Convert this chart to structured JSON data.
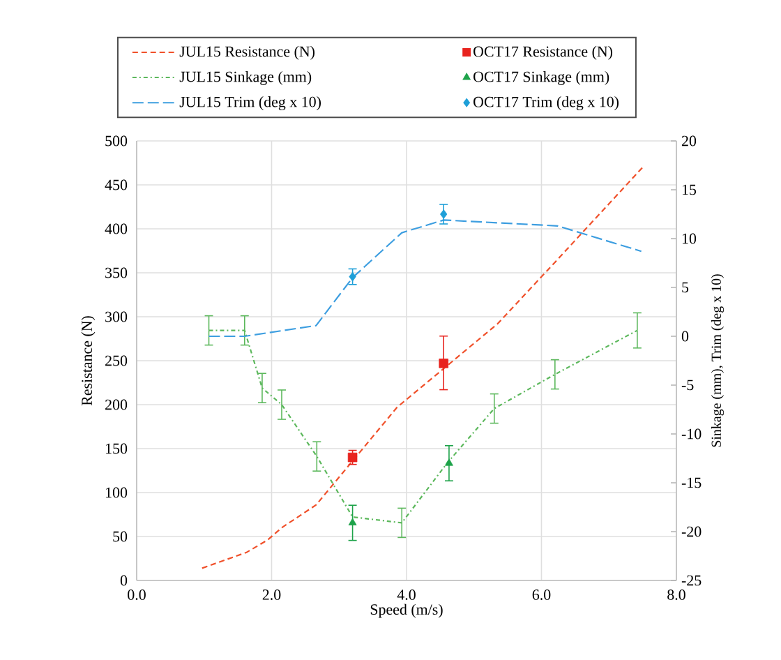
{
  "chart_data": {
    "type": "line",
    "xlabel": "Speed (m/s)",
    "ylabel": "Resistance (N)",
    "y2label": "Sinkage (mm), Trim (deg x 10)",
    "xlim": [
      0,
      8
    ],
    "xticks": [
      {
        "value": 0,
        "label": "0.0"
      },
      {
        "value": 2,
        "label": "2.0"
      },
      {
        "value": 4,
        "label": "4.0"
      },
      {
        "value": 6,
        "label": "6.0"
      },
      {
        "value": 8,
        "label": "8.0"
      }
    ],
    "ylim": [
      0,
      500
    ],
    "yticks": [
      0,
      50,
      100,
      150,
      200,
      250,
      300,
      350,
      400,
      450,
      500
    ],
    "y2lim": [
      -25,
      20
    ],
    "y2ticks": [
      -25,
      -20,
      -15,
      -10,
      -5,
      0,
      5,
      10,
      15,
      20
    ],
    "grid": true,
    "legend": "top",
    "series": [
      {
        "name": "JUL15 Resistance (N)",
        "color": "#f0502a",
        "line_style": "dashed",
        "marker": "none",
        "x": [
          0.97,
          1.63,
          1.94,
          2.15,
          2.66,
          3.86,
          5.35,
          6.2,
          7.5
        ],
        "values": [
          14,
          32,
          46,
          60,
          86,
          197,
          292,
          362,
          470
        ]
      },
      {
        "name": "OCT17 Resistance (N)",
        "type": "scatter",
        "color": "#e8231e",
        "marker": "square",
        "x": [
          3.2,
          4.55
        ],
        "values": [
          140,
          247
        ],
        "errors": [
          8,
          [
            217,
            278
          ]
        ]
      },
      {
        "name": "JUL15 Sinkage (mm)",
        "axis": "y2",
        "color": "#5cb85c",
        "line_style": "dashdot",
        "marker": "none",
        "x": [
          1.07,
          1.6,
          1.86,
          2.15,
          2.67,
          3.2,
          3.93,
          4.6,
          5.3,
          6.2,
          7.42
        ],
        "values": [
          0.6,
          0.6,
          -5.3,
          -7,
          -12.3,
          -18.5,
          -19.1,
          -13,
          -7.4,
          -3.9,
          0.6
        ],
        "errors": [
          1.5,
          1.5,
          1.5,
          1.5,
          1.5,
          null,
          1.5,
          null,
          1.5,
          1.5,
          1.8
        ]
      },
      {
        "name": "OCT17 Sinkage (mm)",
        "type": "scatter",
        "axis": "y2",
        "color": "#1ea34a",
        "marker": "triangle",
        "x": [
          3.2,
          4.63
        ],
        "values": [
          -19.1,
          -13
        ],
        "errors": [
          1.8,
          1.8
        ]
      },
      {
        "name": "JUL15 Trim (deg x 10)",
        "axis": "y2",
        "color": "#3d9ee0",
        "line_style": "longdash",
        "marker": "none",
        "x": [
          1.07,
          1.6,
          2.66,
          3.2,
          3.93,
          4.55,
          6.24,
          7.48
        ],
        "values": [
          0,
          0,
          1.1,
          6,
          10.6,
          11.9,
          11.3,
          8.7
        ]
      },
      {
        "name": "OCT17 Trim (deg x 10)",
        "type": "scatter",
        "axis": "y2",
        "color": "#1e9fd8",
        "marker": "diamond",
        "x": [
          3.2,
          4.55
        ],
        "values": [
          6.1,
          12.5
        ],
        "errors": [
          0.8,
          1
        ]
      }
    ]
  }
}
